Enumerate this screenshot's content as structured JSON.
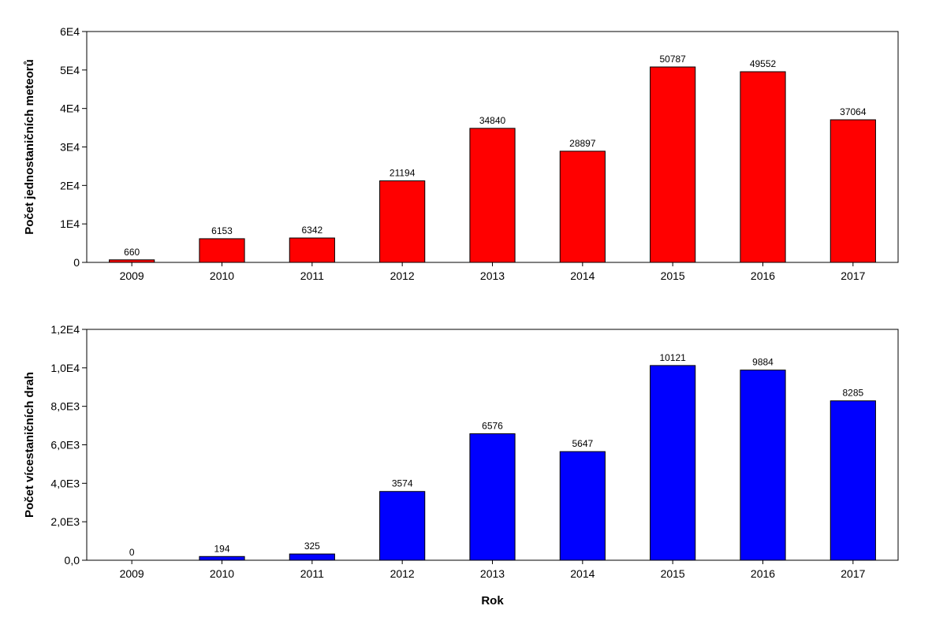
{
  "chart_data": [
    {
      "type": "bar",
      "categories": [
        "2009",
        "2010",
        "2011",
        "2012",
        "2013",
        "2014",
        "2015",
        "2016",
        "2017"
      ],
      "values": [
        660,
        6153,
        6342,
        21194,
        34840,
        28897,
        50787,
        49552,
        37064
      ],
      "value_labels": [
        "660",
        "6153",
        "6342",
        "21194",
        "34840",
        "28897",
        "50787",
        "49552",
        "37064"
      ],
      "ylabel": "Počet jednostaničních meteorů",
      "xlabel": "",
      "ylim": [
        0,
        60000
      ],
      "yticks": [
        0,
        10000,
        20000,
        30000,
        40000,
        50000,
        60000
      ],
      "ytick_labels": [
        "0",
        "1E4",
        "2E4",
        "3E4",
        "4E4",
        "5E4",
        "6E4"
      ],
      "color": "#ff0000",
      "grid": false,
      "legend": "none"
    },
    {
      "type": "bar",
      "categories": [
        "2009",
        "2010",
        "2011",
        "2012",
        "2013",
        "2014",
        "2015",
        "2016",
        "2017"
      ],
      "values": [
        0,
        194,
        325,
        3574,
        6576,
        5647,
        10121,
        9884,
        8285
      ],
      "value_labels": [
        "0",
        "194",
        "325",
        "3574",
        "6576",
        "5647",
        "10121",
        "9884",
        "8285"
      ],
      "ylabel": "Počet vícestaničních drah",
      "xlabel": "Rok",
      "ylim": [
        0,
        12000
      ],
      "yticks": [
        0,
        2000,
        4000,
        6000,
        8000,
        10000,
        12000
      ],
      "ytick_labels": [
        "0,0",
        "2,0E3",
        "4,0E3",
        "6,0E3",
        "8,0E3",
        "1,0E4",
        "1,2E4"
      ],
      "color": "#0000ff",
      "grid": false,
      "legend": "none"
    }
  ]
}
